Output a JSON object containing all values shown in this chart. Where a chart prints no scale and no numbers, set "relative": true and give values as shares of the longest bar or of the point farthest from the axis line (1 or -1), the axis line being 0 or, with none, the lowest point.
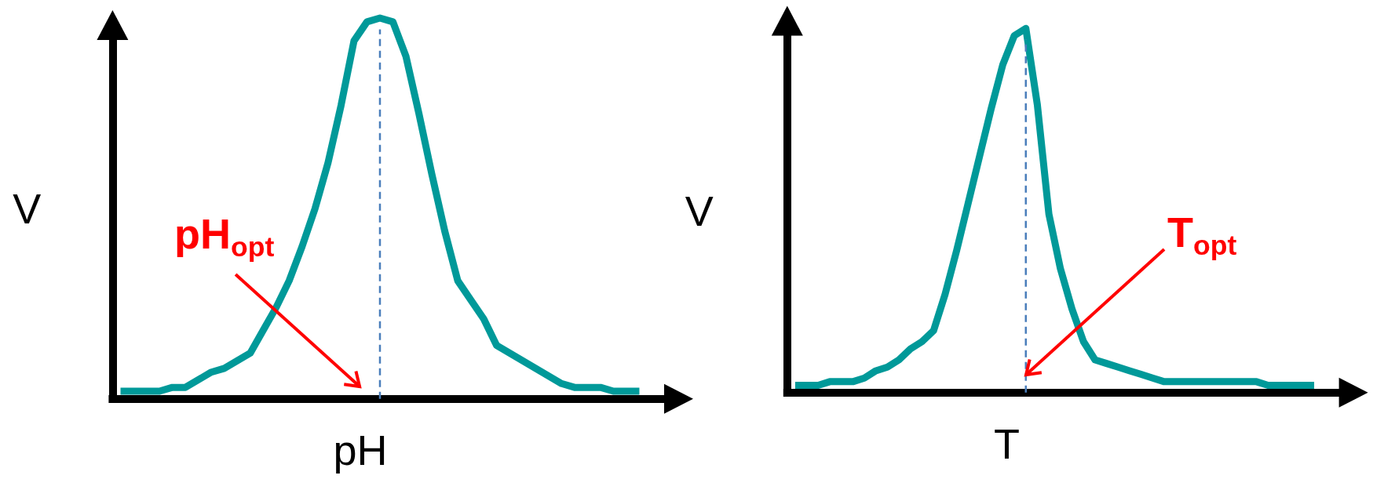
{
  "chart_data": [
    {
      "type": "line",
      "xlabel": "pH",
      "ylabel": "V",
      "relative": true,
      "marker": "none",
      "line_style": "solid",
      "categories": [
        null,
        null,
        null,
        null,
        null,
        null,
        null,
        null,
        null,
        null,
        null,
        null,
        null,
        null,
        null,
        null,
        null,
        null,
        null,
        null,
        null,
        null,
        null,
        null,
        null,
        null,
        null,
        null,
        null,
        null,
        null,
        null,
        null,
        null,
        null,
        null,
        null,
        null,
        null,
        null,
        null
      ],
      "series": [
        {
          "color": "#009999",
          "values": [
            0.02,
            0.02,
            0.02,
            0.02,
            0.03,
            0.03,
            0.05,
            0.07,
            0.08,
            0.1,
            0.12,
            0.18,
            0.24,
            0.31,
            0.4,
            0.5,
            0.62,
            0.77,
            0.94,
            0.99,
            1,
            0.99,
            0.9,
            0.75,
            0.59,
            0.44,
            0.31,
            0.26,
            0.21,
            0.14,
            0.12,
            0.1,
            0.08,
            0.06,
            0.04,
            0.03,
            0.03,
            0.03,
            0.02,
            0.02,
            0.02
          ]
        }
      ],
      "annotations": [
        "pH$_{opt}$"
      ]
    },
    {
      "type": "line",
      "xlabel": "T",
      "ylabel": "V",
      "relative": true,
      "marker": "none",
      "line_style": "solid",
      "categories": [
        null,
        null,
        null,
        null,
        null,
        null,
        null,
        null,
        null,
        null,
        null,
        null,
        null,
        null,
        null,
        null,
        null,
        null,
        null,
        null,
        null,
        null,
        null,
        null,
        null,
        null,
        null,
        null,
        null,
        null,
        null,
        null,
        null,
        null,
        null,
        null,
        null,
        null,
        null,
        null,
        null,
        null,
        null,
        null,
        null,
        null
      ],
      "series": [
        {
          "color": "#009999",
          "values": [
            0.02,
            0.02,
            0.02,
            0.03,
            0.03,
            0.03,
            0.04,
            0.06,
            0.07,
            0.09,
            0.12,
            0.14,
            0.17,
            0.27,
            0.39,
            0.52,
            0.65,
            0.78,
            0.9,
            0.98,
            1,
            0.79,
            0.49,
            0.34,
            0.23,
            0.14,
            0.09,
            0.08,
            0.07,
            0.06,
            0.05,
            0.04,
            0.03,
            0.03,
            0.03,
            0.03,
            0.03,
            0.03,
            0.03,
            0.03,
            0.03,
            0.02,
            0.02,
            0.02,
            0.02,
            0.02
          ]
        }
      ],
      "annotations": [
        "T$_{opt}$"
      ]
    }
  ]
}
